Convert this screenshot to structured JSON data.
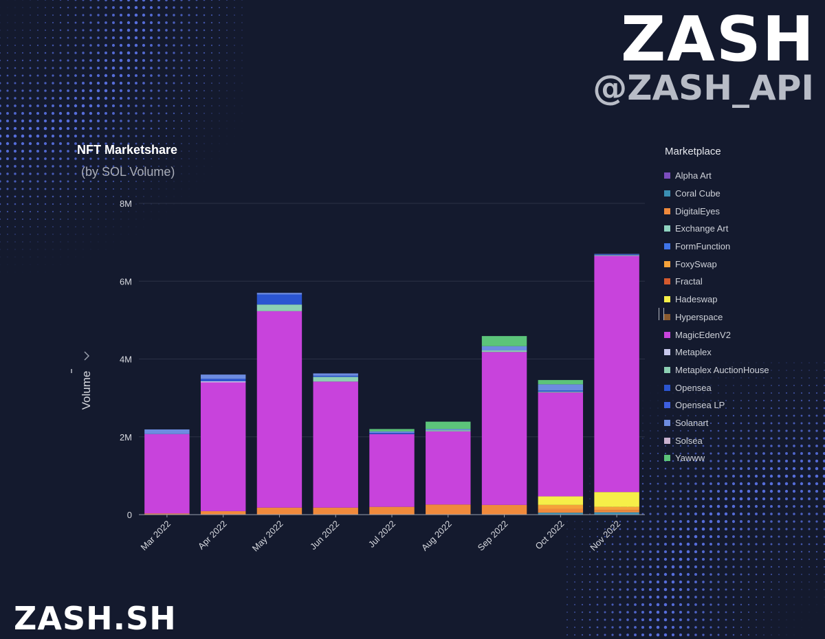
{
  "brand": {
    "title": "ZASH",
    "handle": "@ZASH_API",
    "site": "ZASH.SH"
  },
  "colors": {
    "background": "#141a2e",
    "gridline": "#2c3247",
    "dots": "#5b74e8"
  },
  "chart_data": {
    "type": "bar",
    "stacked": true,
    "title": "NFT Marketshare",
    "subtitle": "(by SOL Volume)",
    "xlabel": "",
    "ylabel": "Volume",
    "ylim": [
      0,
      8000000
    ],
    "yticks": [
      {
        "value": 0,
        "label": "0"
      },
      {
        "value": 2000000,
        "label": "2M"
      },
      {
        "value": 4000000,
        "label": "4M"
      },
      {
        "value": 6000000,
        "label": "6M"
      },
      {
        "value": 8000000,
        "label": "8M"
      }
    ],
    "grid": true,
    "legend": "right",
    "legend_title": "Marketplace",
    "categories": [
      "Mar 2022",
      "Apr 2022",
      "May 2022",
      "Jun 2022",
      "Jul 2022",
      "Aug 2022",
      "Sep 2022",
      "Oct 2022",
      "Nov 2022"
    ],
    "series": [
      {
        "name": "Alpha Art",
        "color": "#7c4dbe",
        "values": [
          0,
          0,
          0,
          0,
          0,
          0,
          0,
          0,
          0
        ]
      },
      {
        "name": "Coral Cube",
        "color": "#3a8fb3",
        "values": [
          0,
          0,
          0,
          0,
          0,
          0,
          0,
          50000,
          60000
        ]
      },
      {
        "name": "DigitalEyes",
        "color": "#f08a3c",
        "values": [
          30000,
          90000,
          180000,
          180000,
          200000,
          260000,
          250000,
          100000,
          60000
        ]
      },
      {
        "name": "Exchange Art",
        "color": "#8fd3c0",
        "values": [
          0,
          0,
          0,
          0,
          0,
          0,
          0,
          0,
          0
        ]
      },
      {
        "name": "FormFunction",
        "color": "#3f74e8",
        "values": [
          0,
          0,
          0,
          0,
          0,
          0,
          0,
          0,
          0
        ]
      },
      {
        "name": "FoxySwap",
        "color": "#f5a23a",
        "values": [
          0,
          0,
          0,
          0,
          0,
          0,
          0,
          100000,
          80000
        ]
      },
      {
        "name": "Fractal",
        "color": "#d45a2e",
        "values": [
          0,
          0,
          0,
          0,
          0,
          0,
          0,
          0,
          0
        ]
      },
      {
        "name": "Hadeswap",
        "color": "#f6ef48",
        "values": [
          0,
          0,
          0,
          0,
          0,
          0,
          0,
          220000,
          380000
        ]
      },
      {
        "name": "Hyperspace",
        "color": "#8a5a2e",
        "values": [
          0,
          0,
          0,
          0,
          0,
          0,
          0,
          0,
          0
        ]
      },
      {
        "name": "MagicEdenV2",
        "color": "#c843dc",
        "values": [
          2040000,
          3310000,
          5050000,
          3240000,
          1870000,
          1880000,
          3930000,
          2670000,
          6070000
        ]
      },
      {
        "name": "Metaplex",
        "color": "#c7c8ec",
        "values": [
          0,
          30000,
          0,
          0,
          0,
          0,
          0,
          0,
          0
        ]
      },
      {
        "name": "Metaplex AuctionHouse",
        "color": "#8ccfb3",
        "values": [
          0,
          0,
          170000,
          120000,
          0,
          30000,
          40000,
          20000,
          20000
        ]
      },
      {
        "name": "Opensea",
        "color": "#2b55d1",
        "values": [
          0,
          60000,
          260000,
          30000,
          30000,
          0,
          0,
          30000,
          20000
        ]
      },
      {
        "name": "Opensea LP",
        "color": "#3d5fe0",
        "values": [
          0,
          0,
          0,
          0,
          0,
          0,
          0,
          0,
          0
        ]
      },
      {
        "name": "Solanart",
        "color": "#6d8ce0",
        "values": [
          120000,
          110000,
          40000,
          60000,
          40000,
          30000,
          110000,
          160000,
          10000
        ]
      },
      {
        "name": "Solsea",
        "color": "#c9b2cf",
        "values": [
          0,
          0,
          0,
          0,
          0,
          0,
          0,
          0,
          0
        ]
      },
      {
        "name": "Yawww",
        "color": "#5cc47a",
        "values": [
          0,
          0,
          0,
          0,
          60000,
          190000,
          260000,
          110000,
          0
        ]
      }
    ]
  }
}
